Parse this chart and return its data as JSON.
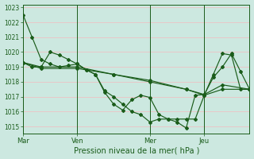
{
  "bg_color": "#cce8e0",
  "grid_color": "#e8c8c8",
  "line_color": "#1a5c1a",
  "ylim": [
    1014.5,
    1023.2
  ],
  "yticks": [
    1015,
    1016,
    1017,
    1018,
    1019,
    1020,
    1021,
    1022,
    1023
  ],
  "xlabel": "Pression niveau de la mer( hPa )",
  "xtick_labels": [
    "Mar",
    "Ven",
    "Mer",
    "Jeu"
  ],
  "xtick_positions": [
    0,
    24,
    56,
    80
  ],
  "vline_positions": [
    0,
    24,
    56,
    80
  ],
  "xlim": [
    0,
    100
  ],
  "series": [
    {
      "x": [
        0,
        4,
        8,
        12,
        16,
        20,
        24,
        28,
        32,
        36,
        40,
        44,
        48,
        52,
        56,
        60,
        64,
        68,
        72,
        76,
        80,
        84,
        88,
        92,
        96,
        100
      ],
      "y": [
        1022.5,
        1021.0,
        1019.5,
        1019.2,
        1019.0,
        1019.1,
        1019.2,
        1018.8,
        1018.5,
        1017.3,
        1016.5,
        1016.1,
        1016.8,
        1017.1,
        1016.95,
        1015.8,
        1015.5,
        1015.3,
        1014.9,
        1017.1,
        1017.15,
        1018.3,
        1019.0,
        1019.9,
        1018.7,
        1017.5
      ]
    },
    {
      "x": [
        0,
        4,
        8,
        12,
        16,
        20,
        24,
        28,
        32,
        36,
        40,
        44,
        48,
        52,
        56,
        60,
        64,
        68,
        72,
        76,
        80,
        84,
        88,
        92,
        96,
        100
      ],
      "y": [
        1019.3,
        1019.0,
        1019.0,
        1020.0,
        1019.8,
        1019.5,
        1019.2,
        1018.8,
        1018.5,
        1017.4,
        1017.0,
        1016.5,
        1016.0,
        1015.8,
        1015.3,
        1015.5,
        1015.5,
        1015.5,
        1015.5,
        1015.5,
        1017.1,
        1018.5,
        1019.9,
        1019.8,
        1017.5,
        1017.5
      ]
    },
    {
      "x": [
        0,
        8,
        24,
        40,
        56,
        72,
        80,
        88,
        100
      ],
      "y": [
        1019.3,
        1019.0,
        1019.0,
        1018.5,
        1018.0,
        1017.5,
        1017.15,
        1017.8,
        1017.5
      ]
    },
    {
      "x": [
        0,
        8,
        24,
        40,
        56,
        72,
        80,
        88,
        100
      ],
      "y": [
        1019.3,
        1018.9,
        1018.9,
        1018.5,
        1018.1,
        1017.5,
        1017.1,
        1017.5,
        1017.5
      ]
    }
  ],
  "markers": [
    true,
    true,
    true,
    true
  ]
}
